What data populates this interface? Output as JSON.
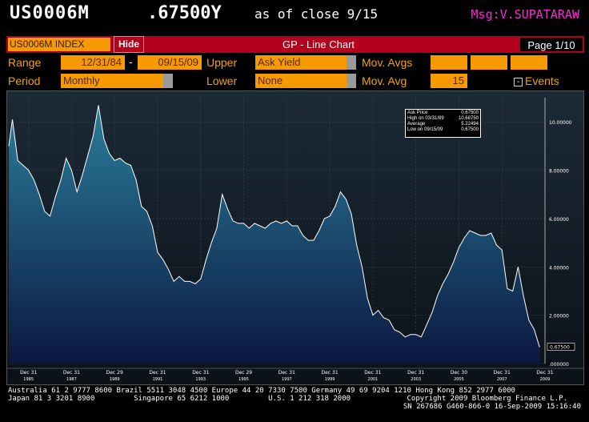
{
  "header": {
    "ticker": "US0006M",
    "quote": ".67500Y",
    "as_of": "as of close  9/15",
    "msg": "Msg:V.SUPATARAW"
  },
  "toolbar": {
    "security": "US0006M INDEX",
    "hide_label": "Hide",
    "title": "GP - Line Chart",
    "page": "Page 1/10"
  },
  "controls": {
    "range_label": "Range",
    "range_start": "12/31/84",
    "range_sep": "-",
    "range_end": "09/15/09",
    "upper_label": "Upper",
    "upper_value": "Ask Yield",
    "mavgs_label": "Mov. Avgs",
    "period_label": "Period",
    "period_value": "Monthly",
    "lower_label": "Lower",
    "lower_value": "None",
    "mavg_label": "Mov. Avg",
    "mavg_value": "15",
    "events_label": "Events"
  },
  "legend": {
    "rows": [
      {
        "label": "Ask Price",
        "value": "0.67500"
      },
      {
        "label": "High on 03/31/89",
        "value": "10.68750"
      },
      {
        "label": "Average",
        "value": "5.22494"
      },
      {
        "label": "Low on 09/15/09",
        "value": "0.67500"
      }
    ]
  },
  "chart_data": {
    "type": "area",
    "series": [
      {
        "x": [
          "1985-01",
          "1985-03",
          "1985-06",
          "1985-09",
          "1985-12",
          "1986-03",
          "1986-06",
          "1986-09",
          "1986-12",
          "1987-03",
          "1987-06",
          "1987-09",
          "1987-12",
          "1988-03",
          "1988-06",
          "1988-09",
          "1988-12",
          "1989-03",
          "1989-06",
          "1989-09",
          "1989-12",
          "1990-03",
          "1990-06",
          "1990-09",
          "1990-12",
          "1991-03",
          "1991-06",
          "1991-09",
          "1991-12",
          "1992-03",
          "1992-06",
          "1992-09",
          "1992-12",
          "1993-03",
          "1993-06",
          "1993-09",
          "1993-12",
          "1994-03",
          "1994-06",
          "1994-09",
          "1994-12",
          "1995-03",
          "1995-06",
          "1995-09",
          "1995-12",
          "1996-03",
          "1996-06",
          "1996-09",
          "1996-12",
          "1997-03",
          "1997-06",
          "1997-09",
          "1997-12",
          "1998-03",
          "1998-06",
          "1998-09",
          "1998-12",
          "1999-03",
          "1999-06",
          "1999-09",
          "1999-12",
          "2000-03",
          "2000-06",
          "2000-09",
          "2000-12",
          "2001-03",
          "2001-06",
          "2001-09",
          "2001-12",
          "2002-03",
          "2002-06",
          "2002-09",
          "2002-12",
          "2003-03",
          "2003-06",
          "2003-09",
          "2003-12",
          "2004-03",
          "2004-06",
          "2004-09",
          "2004-12",
          "2005-03",
          "2005-06",
          "2005-09",
          "2005-12",
          "2006-03",
          "2006-06",
          "2006-09",
          "2006-12",
          "2007-03",
          "2007-06",
          "2007-09",
          "2007-12",
          "2008-03",
          "2008-06",
          "2008-09",
          "2008-12",
          "2009-03",
          "2009-06",
          "2009-09"
        ],
        "values": [
          9.0,
          10.1,
          8.4,
          8.2,
          8.0,
          7.6,
          7.0,
          6.3,
          6.1,
          6.9,
          7.6,
          8.5,
          8.0,
          7.1,
          7.8,
          8.6,
          9.4,
          10.69,
          9.3,
          8.7,
          8.4,
          8.5,
          8.3,
          8.2,
          7.6,
          6.5,
          6.3,
          5.7,
          4.6,
          4.3,
          3.9,
          3.4,
          3.6,
          3.4,
          3.4,
          3.3,
          3.5,
          4.3,
          5.0,
          5.6,
          7.0,
          6.4,
          5.9,
          5.8,
          5.8,
          5.6,
          5.8,
          5.7,
          5.6,
          5.8,
          5.9,
          5.8,
          5.9,
          5.7,
          5.7,
          5.3,
          5.1,
          5.1,
          5.5,
          6.0,
          6.1,
          6.5,
          7.1,
          6.8,
          6.2,
          4.9,
          4.0,
          2.7,
          2.0,
          2.2,
          1.9,
          1.8,
          1.4,
          1.3,
          1.1,
          1.2,
          1.2,
          1.1,
          1.6,
          2.1,
          2.8,
          3.3,
          3.7,
          4.2,
          4.8,
          5.2,
          5.5,
          5.4,
          5.3,
          5.3,
          5.4,
          4.9,
          4.7,
          3.1,
          3.0,
          4.0,
          2.8,
          1.8,
          1.4,
          0.675
        ]
      }
    ],
    "ylim": [
      0,
      11
    ],
    "y_ticks": [
      "10.00000",
      "8.00000",
      "6.00000",
      "4.00000",
      "2.00000",
      ".000000"
    ],
    "y_tick_values": [
      10,
      8,
      6,
      4,
      2,
      0
    ],
    "last_value_label": "0.67500",
    "x_ticks": [
      {
        "label": "Dec 31",
        "year": "1985"
      },
      {
        "label": "Dec 31",
        "year": "1987"
      },
      {
        "label": "Dec 29",
        "year": "1989"
      },
      {
        "label": "Dec 31",
        "year": "1991"
      },
      {
        "label": "Dec 31",
        "year": "1993"
      },
      {
        "label": "Dec 29",
        "year": "1995"
      },
      {
        "label": "Dec 31",
        "year": "1997"
      },
      {
        "label": "Dec 31",
        "year": "1999"
      },
      {
        "label": "Dec 31",
        "year": "2001"
      },
      {
        "label": "Dec 31",
        "year": "2003"
      },
      {
        "label": "Dec 30",
        "year": "2005"
      },
      {
        "label": "Dec 31",
        "year": "2007"
      },
      {
        "label": "Dec 31",
        "year": "2009"
      }
    ],
    "grid": true,
    "colors": {
      "area_top": "#1f6f8f",
      "area_bottom": "#0a1a3a",
      "line": "#ffffff",
      "bg": "#101820"
    }
  },
  "footer": {
    "line1": "Australia 61 2 9777 8600 Brazil 5511 3048 4500 Europe 44 20 7330 7500 Germany 49 69 9204 1210 Hong Kong 852 2977 6000",
    "line2": "Japan 81 3 3201 8900         Singapore 65 6212 1000         U.S. 1 212 318 2000             Copyright 2009 Bloomberg Finance L.P.",
    "line3": "SN 267686 G460-866-0 16-Sep-2009 15:16:40"
  }
}
